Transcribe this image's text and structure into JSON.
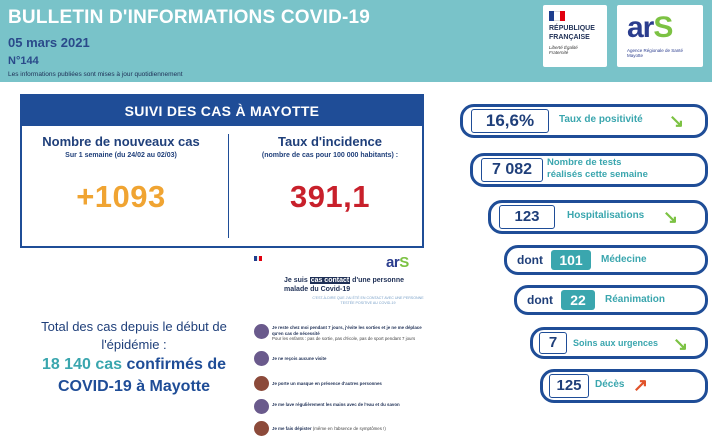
{
  "header": {
    "title": "BULLETIN D'INFORMATIONS COVID-19",
    "date": "05 mars 2021",
    "number": "N°144",
    "note": "Les informations publiées sont mises à jour quotidiennement"
  },
  "logos": {
    "republique_line1": "RÉPUBLIQUE",
    "republique_line2": "FRANÇAISE",
    "republique_motto": "Liberté Égalité Fraternité",
    "ars_subtitle": "Agence Régionale de Santé Mayotte"
  },
  "suivi": {
    "title": "SUIVI DES CAS À MAYOTTE",
    "new_cases": {
      "label": "Nombre de nouveaux cas",
      "period": "Sur 1 semaine (du 24/02 au 02/03)",
      "value": "+1093"
    },
    "incidence": {
      "label": "Taux d'incidence",
      "detail": "(nombre de cas pour 100 000 habitants) :",
      "value": "391,1"
    }
  },
  "total": {
    "line1": "Total des cas depuis le début de",
    "line1b": "l'épidémie :",
    "count": "18 140 cas",
    "line2_rest": " confirmés de",
    "line3": "COVID-19 à Mayotte"
  },
  "contact_card": {
    "title_prefix": "Je suis ",
    "title_highlight": "cas contact",
    "title_suffix": " d'une personne malade du Covid-19",
    "description": "C'EST-À-DIRE QUE J'AI ÉTÉ EN CONTACT AVEC UNE PERSONNE TESTÉE POSITIVE AU COVID-19",
    "items": [
      {
        "text": "Je reste chez moi pendant 7 jours, j'évite les sorties et je ne me déplace qu'en cas de nécessité",
        "note": "Pour les enfants : pas de sortie, pas d'école, pas de sport pendant 7 jours"
      },
      {
        "text": "Je ne reçois aucune visite",
        "note": ""
      },
      {
        "text": "Je porte un masque en présence d'autres personnes",
        "note": ""
      },
      {
        "text": "Je me lave régulièrement les mains avec de l'eau et du savon",
        "note": ""
      },
      {
        "text": "Je me fais dépister",
        "note": "(même en l'absence de symptômes !)"
      }
    ]
  },
  "stats": {
    "positivity": {
      "value": "16,6%",
      "label": "Taux de positivité",
      "trend": "down-arrow-icon"
    },
    "tests": {
      "value": "7 082",
      "label_line1": "Nombre de tests",
      "label_line2": "réalisés cette semaine"
    },
    "hospital": {
      "value": "123",
      "label": "Hospitalisations",
      "trend": "down-arrow-icon"
    },
    "medecine": {
      "prefix": "dont",
      "value": "101",
      "label": "Médecine"
    },
    "reanimation": {
      "prefix": "dont",
      "value": "22",
      "label": "Réanimation"
    },
    "urgences": {
      "value": "7",
      "label": "Soins aux urgences",
      "trend": "down-arrow-icon"
    },
    "deces": {
      "value": "125",
      "label": "Décès",
      "trend": "up-arrow-icon"
    }
  },
  "colors": {
    "header_bg": "#79c3c9",
    "navy": "#1f4d97",
    "teal": "#3aa6ae",
    "orange": "#f0a432",
    "red": "#c8202b",
    "trend_down": "#7cc243",
    "trend_up": "#e1532a"
  }
}
